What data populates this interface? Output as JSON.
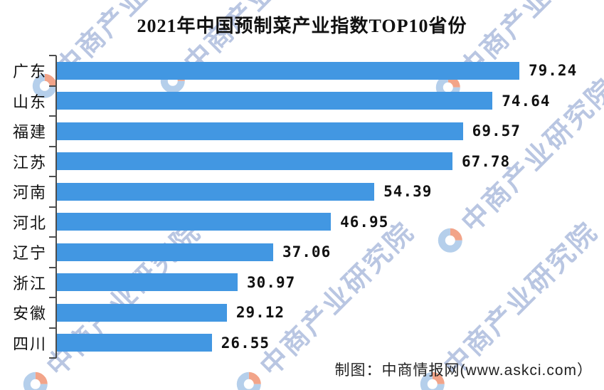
{
  "chart_data": {
    "type": "bar",
    "orientation": "horizontal",
    "title": "2021年中国预制菜产业指数TOP10省份",
    "categories": [
      "广东",
      "山东",
      "福建",
      "江苏",
      "河南",
      "河北",
      "辽宁",
      "浙江",
      "安徽",
      "四川"
    ],
    "values": [
      79.24,
      74.64,
      69.57,
      67.78,
      54.39,
      46.95,
      37.06,
      30.97,
      29.12,
      26.55
    ],
    "value_label_texts": [
      "79.24",
      "74.64",
      "69.57",
      "67.78",
      "54.39",
      "46.95",
      "37.06",
      "30.97",
      "29.12",
      "26.55"
    ],
    "xlim": [
      0,
      85
    ],
    "grid": false,
    "legend": false,
    "bar_color": "#4297E2",
    "axis_color": "#4d4d4d",
    "label_color": "#111111"
  },
  "footer": {
    "credit": "制图：中商情报网(www.askci.com）"
  },
  "watermark": {
    "text": "中商产业研究院",
    "logo": "askci-compass-logo-icon",
    "text_color": "#b9c6e2",
    "logo_ring_color": "#b5cfeb",
    "logo_accent_color": "#f2a489"
  }
}
